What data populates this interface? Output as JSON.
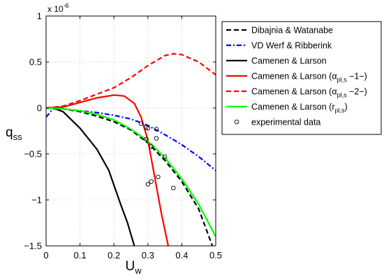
{
  "chart_data": {
    "type": "line",
    "xlabel": "U",
    "xlabel_sub": "w",
    "ylabel": "q",
    "ylabel_sub": "ss",
    "exponent_label": "x 10",
    "exponent_power": "-6",
    "xlim": [
      0,
      0.5
    ],
    "ylim": [
      -1.5,
      1
    ],
    "grid": true,
    "legend_position": "outside-top-right",
    "xticks": [
      0,
      0.1,
      0.2,
      0.3,
      0.4,
      0.5
    ],
    "xtick_labels": [
      "0",
      "0.1",
      "0.2",
      "0.3",
      "0.4",
      "0.5"
    ],
    "yticks": [
      -1.5,
      -1,
      -0.5,
      0,
      0.5,
      1
    ],
    "ytick_labels": [
      "−1.5",
      "−1",
      "−0.5",
      "0",
      "0.5",
      "1"
    ],
    "series": [
      {
        "name": "Dibajnia & Watanabe",
        "color": "#000000",
        "style": "dashed",
        "points": [
          [
            0,
            0
          ],
          [
            0.05,
            -0.01
          ],
          [
            0.1,
            -0.04
          ],
          [
            0.15,
            -0.09
          ],
          [
            0.2,
            -0.15
          ],
          [
            0.25,
            -0.24
          ],
          [
            0.3,
            -0.38
          ],
          [
            0.35,
            -0.57
          ],
          [
            0.4,
            -0.8
          ],
          [
            0.45,
            -1.1
          ],
          [
            0.49,
            -1.5
          ]
        ]
      },
      {
        "name": "VD Werf & Ribberink",
        "color": "#0000ff",
        "style": "dashdot",
        "points": [
          [
            0,
            -0.1
          ],
          [
            0.02,
            -0.01
          ],
          [
            0.05,
            -0.01
          ],
          [
            0.1,
            -0.03
          ],
          [
            0.15,
            -0.05
          ],
          [
            0.2,
            -0.08
          ],
          [
            0.25,
            -0.12
          ],
          [
            0.3,
            -0.19
          ],
          [
            0.35,
            -0.29
          ],
          [
            0.4,
            -0.4
          ],
          [
            0.45,
            -0.53
          ],
          [
            0.5,
            -0.68
          ]
        ]
      },
      {
        "name": "Camenen & Larson",
        "color": "#000000",
        "style": "solid",
        "points": [
          [
            0,
            0
          ],
          [
            0.02,
            0
          ],
          [
            0.05,
            -0.04
          ],
          [
            0.1,
            -0.22
          ],
          [
            0.15,
            -0.45
          ],
          [
            0.185,
            -0.68
          ],
          [
            0.2,
            -0.84
          ],
          [
            0.22,
            -1.05
          ],
          [
            0.24,
            -1.25
          ],
          [
            0.26,
            -1.5
          ]
        ]
      },
      {
        "name": "Camenen & Larson (αpl,s −1−)",
        "color": "#ff0000",
        "style": "solid",
        "points": [
          [
            0,
            0
          ],
          [
            0.05,
            0.01
          ],
          [
            0.1,
            0.06
          ],
          [
            0.15,
            0.11
          ],
          [
            0.2,
            0.14
          ],
          [
            0.23,
            0.13
          ],
          [
            0.26,
            0.05
          ],
          [
            0.28,
            -0.1
          ],
          [
            0.3,
            -0.35
          ],
          [
            0.32,
            -0.75
          ],
          [
            0.34,
            -1.15
          ],
          [
            0.36,
            -1.5
          ]
        ]
      },
      {
        "name": "Camenen & Larson (αpl,s −2−)",
        "color": "#ff0000",
        "style": "dashed",
        "points": [
          [
            0,
            0
          ],
          [
            0.05,
            0.02
          ],
          [
            0.1,
            0.08
          ],
          [
            0.15,
            0.15
          ],
          [
            0.2,
            0.22
          ],
          [
            0.25,
            0.33
          ],
          [
            0.3,
            0.46
          ],
          [
            0.35,
            0.57
          ],
          [
            0.375,
            0.59
          ],
          [
            0.4,
            0.58
          ],
          [
            0.45,
            0.5
          ],
          [
            0.5,
            0.36
          ]
        ]
      },
      {
        "name": "Camenen & Larson (rpl,s)",
        "color": "#00ff00",
        "style": "solid",
        "points": [
          [
            0,
            0
          ],
          [
            0.05,
            -0.01
          ],
          [
            0.1,
            -0.03
          ],
          [
            0.15,
            -0.07
          ],
          [
            0.2,
            -0.13
          ],
          [
            0.25,
            -0.23
          ],
          [
            0.3,
            -0.36
          ],
          [
            0.35,
            -0.54
          ],
          [
            0.4,
            -0.77
          ],
          [
            0.45,
            -1.05
          ],
          [
            0.5,
            -1.4
          ]
        ]
      }
    ],
    "scatter": {
      "name": "experimental data",
      "marker": "circle",
      "color": "#000000",
      "points": [
        [
          0.28,
          -0.17
        ],
        [
          0.295,
          -0.34
        ],
        [
          0.295,
          -0.21
        ],
        [
          0.3,
          -0.22
        ],
        [
          0.31,
          -0.42
        ],
        [
          0.325,
          -0.23
        ],
        [
          0.325,
          -0.33
        ],
        [
          0.33,
          -0.75
        ],
        [
          0.35,
          -0.53
        ],
        [
          0.3,
          -0.83
        ],
        [
          0.31,
          -0.8
        ],
        [
          0.375,
          -0.87
        ]
      ]
    }
  }
}
